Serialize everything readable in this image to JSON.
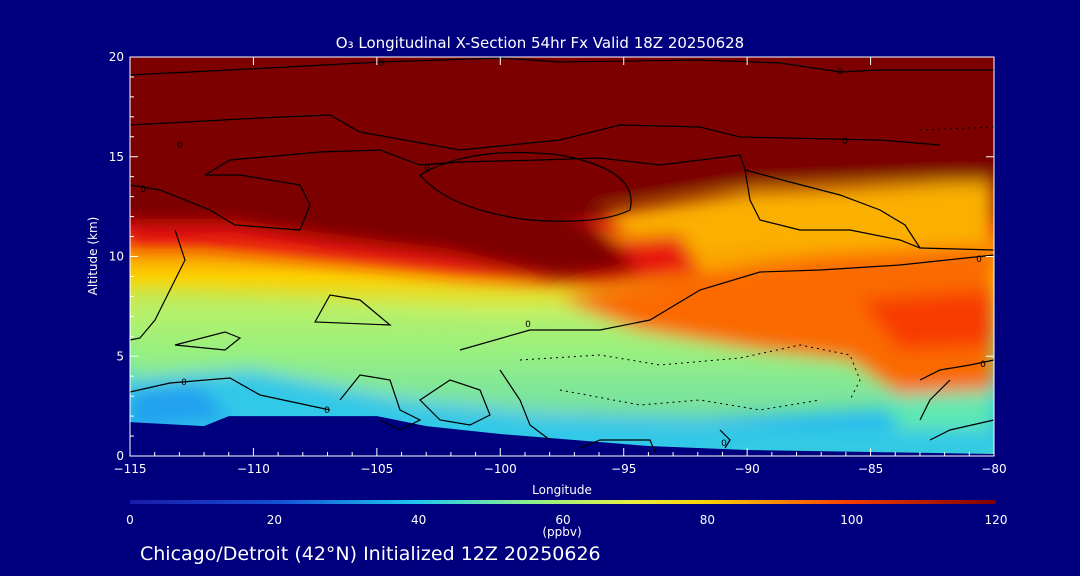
{
  "chart_data": {
    "type": "heatmap",
    "title": "O₃ Longitudinal X-Section 54hr  Fx Valid 18Z 20250628",
    "xlabel": "Longitude",
    "ylabel": "Altitude (km)",
    "xlim": [
      -115,
      -80
    ],
    "ylim": [
      0,
      20
    ],
    "xticks": [
      "−115",
      "−110",
      "−105",
      "−100",
      "−95",
      "−90",
      "−85",
      "−80"
    ],
    "yticks": [
      "0",
      "5",
      "10",
      "15",
      "20"
    ],
    "colorbar": {
      "label": "(ppbv)",
      "min": 0,
      "max": 120,
      "ticks": [
        "0",
        "20",
        "40",
        "60",
        "80",
        "100",
        "120"
      ]
    },
    "contour_label": "0",
    "terrain_km": [
      [
        -115,
        1.7
      ],
      [
        -112,
        1.5
      ],
      [
        -111,
        2.0
      ],
      [
        -110,
        2.0
      ],
      [
        -106,
        2.0
      ],
      [
        -105,
        2.0
      ],
      [
        -103,
        1.5
      ],
      [
        -100,
        1.1
      ],
      [
        -97,
        0.8
      ],
      [
        -94,
        0.5
      ],
      [
        -90,
        0.3
      ],
      [
        -85,
        0.2
      ],
      [
        -80,
        0.1
      ]
    ]
  },
  "footer": "Chicago/Detroit (42°N) Initialized 12Z 20250626"
}
